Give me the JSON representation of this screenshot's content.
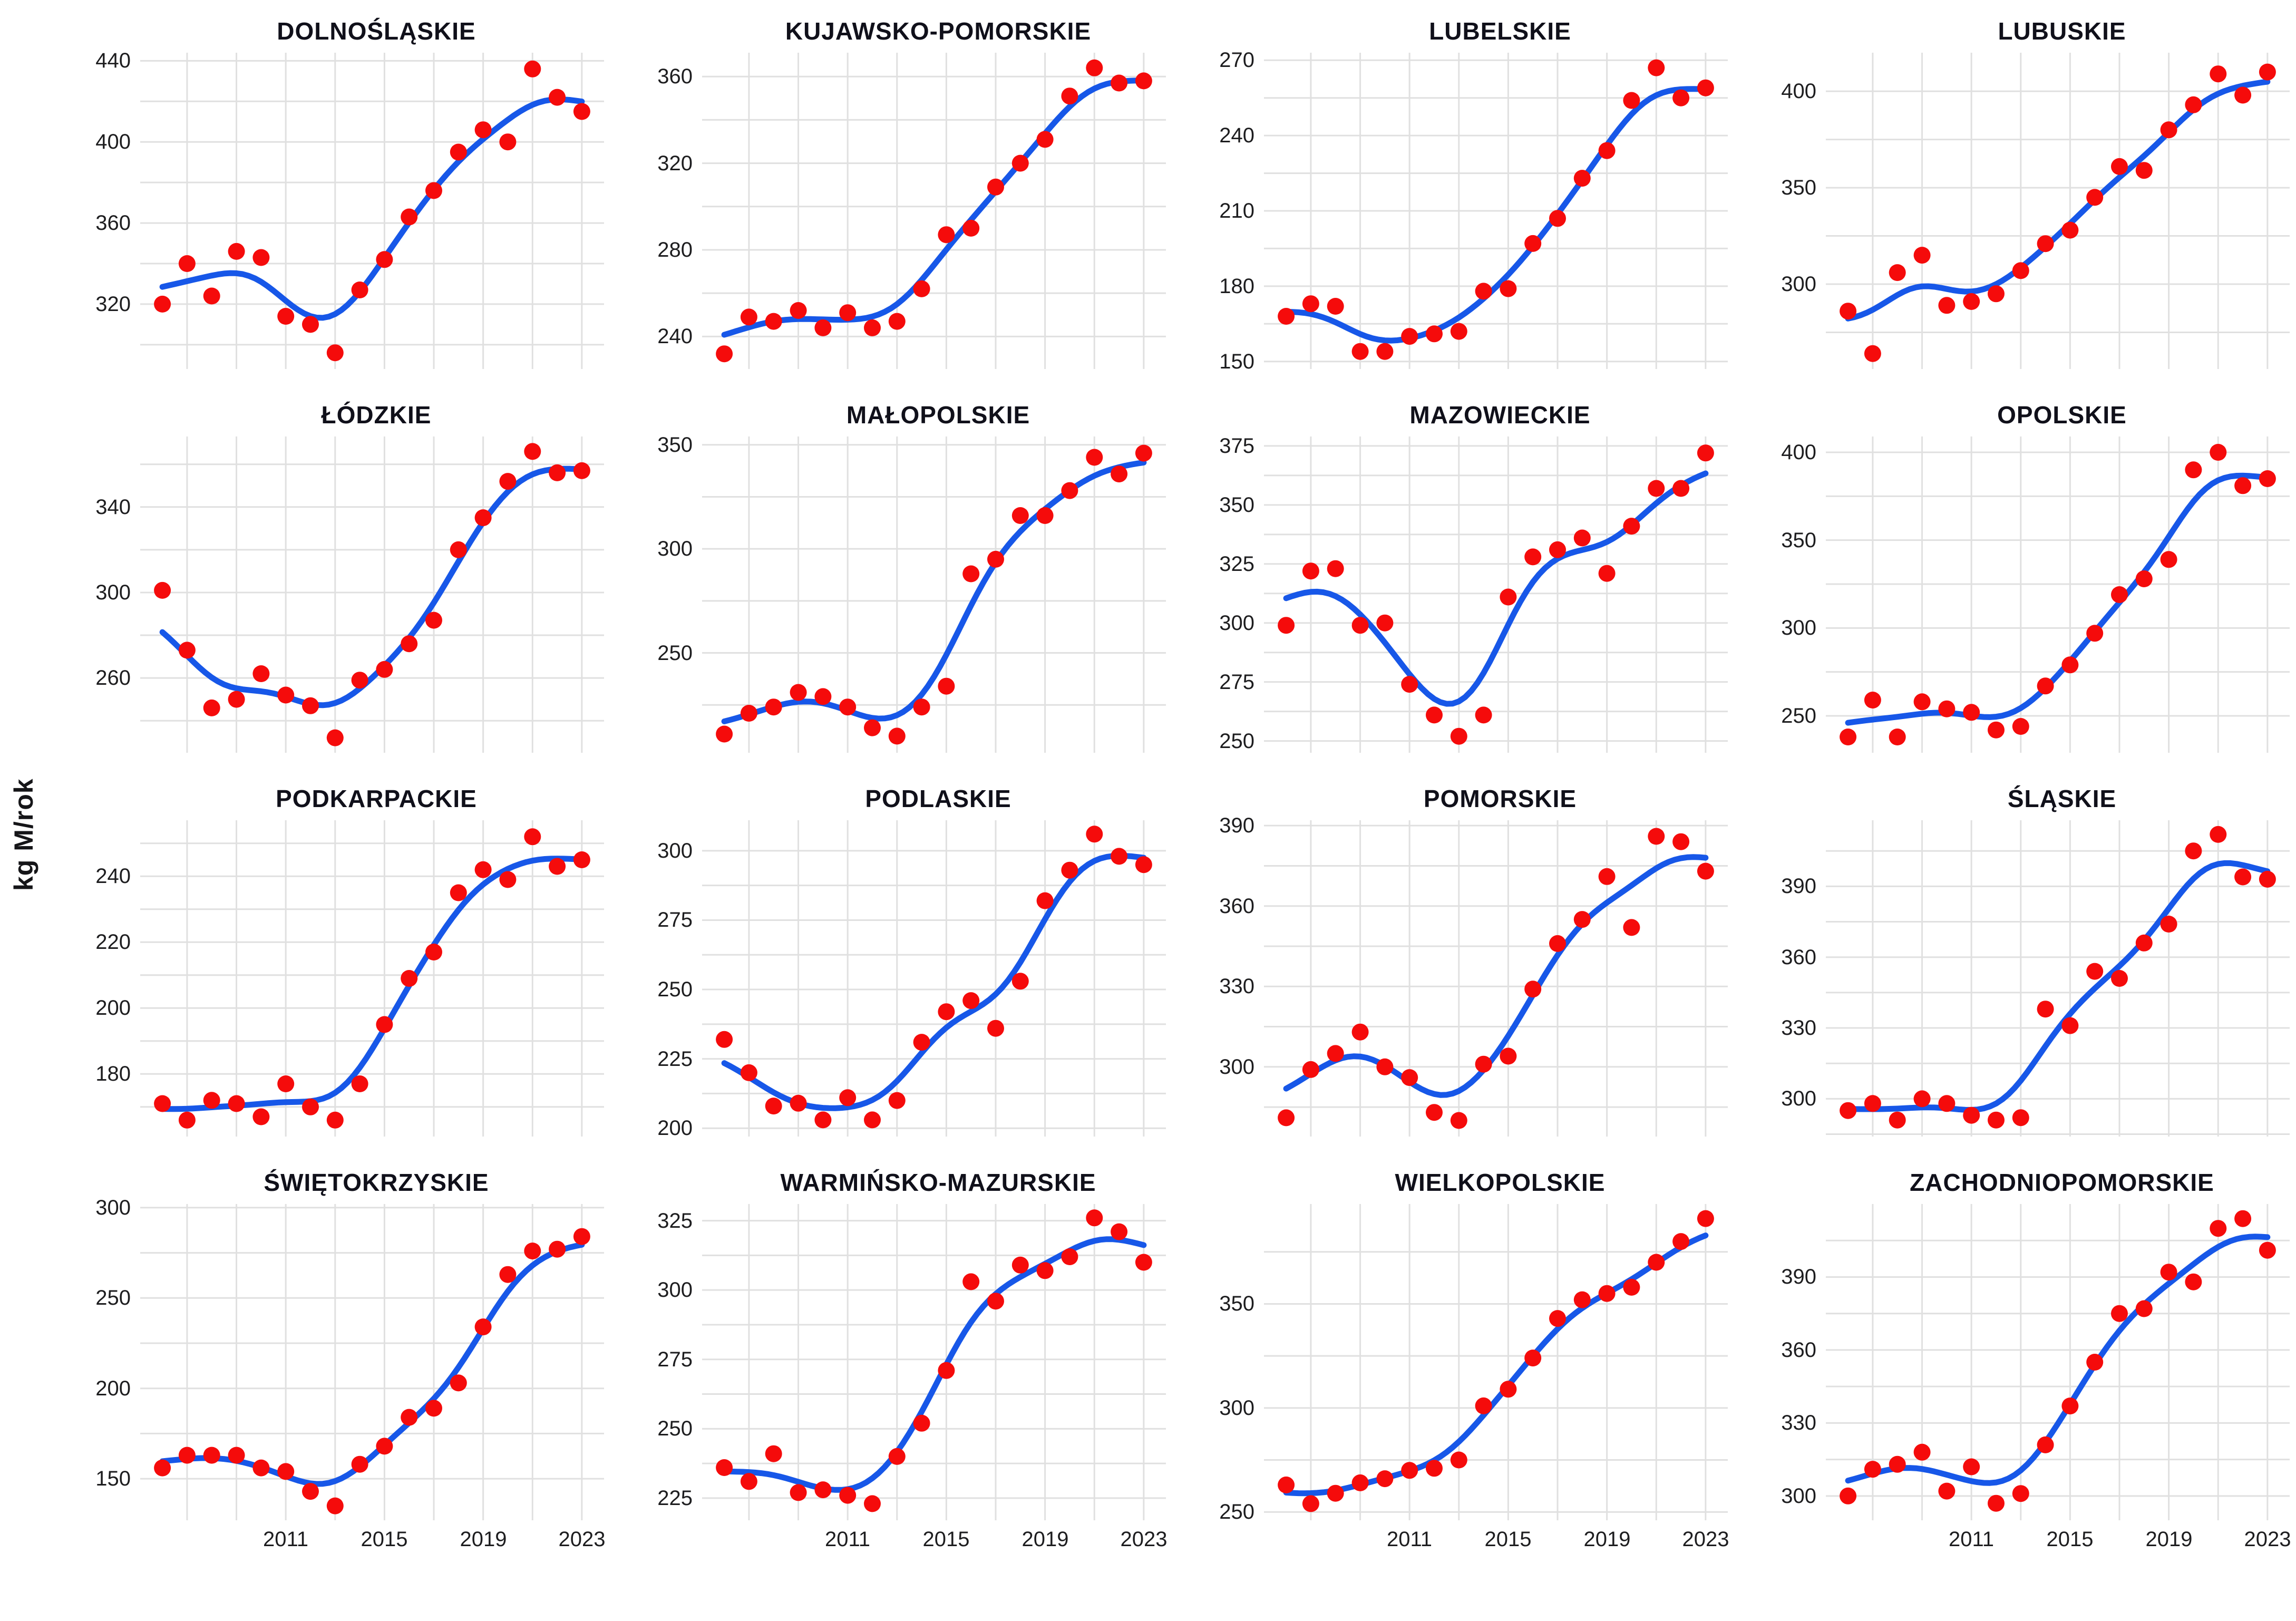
{
  "figure": {
    "ylab": "kg M/rok",
    "x_tick_labels": [
      "2011",
      "2015",
      "2019",
      "2023"
    ],
    "colors": {
      "point": "#f50b0b",
      "line": "#1757e8",
      "grid": "#e0e0e0",
      "text": "#1d1d1f",
      "title": "#10101a",
      "background": "#ffffff"
    }
  },
  "chart_data": {
    "type": "scatter",
    "title": "",
    "xlabel": "",
    "ylabel": "kg M/rok",
    "x": [
      2006,
      2007,
      2008,
      2009,
      2010,
      2011,
      2012,
      2013,
      2014,
      2015,
      2016,
      2017,
      2018,
      2019,
      2020,
      2021,
      2022,
      2023
    ],
    "x_ticks": [
      2011,
      2015,
      2019,
      2023
    ],
    "xlim": [
      2005.1,
      2023.9
    ],
    "grid": "on",
    "legend": "none",
    "smoother": {
      "type": "loess-approx",
      "bandwidth_years": 1.3,
      "color": "#1757e8"
    },
    "panels": [
      {
        "title": "DOLNOŚLĄSKIE",
        "y_ticks": [
          320,
          360,
          400,
          440
        ],
        "ylim": [
          288,
          444
        ],
        "values": [
          320,
          340,
          324,
          346,
          343,
          314,
          310,
          296,
          327,
          342,
          363,
          376,
          395,
          406,
          400,
          436,
          422,
          415
        ]
      },
      {
        "title": "KUJAWSKO-POMORSKIE",
        "y_ticks": [
          240,
          280,
          320,
          360
        ],
        "ylim": [
          225,
          371
        ],
        "values": [
          232,
          249,
          247,
          252,
          244,
          251,
          244,
          247,
          262,
          287,
          290,
          309,
          320,
          331,
          351,
          364,
          357,
          358
        ]
      },
      {
        "title": "LUBELSKIE",
        "y_ticks": [
          150,
          180,
          210,
          240,
          270
        ],
        "ylim": [
          147,
          273
        ],
        "values": [
          168,
          173,
          172,
          154,
          154,
          160,
          161,
          162,
          178,
          179,
          197,
          207,
          223,
          234,
          254,
          267,
          255,
          259
        ]
      },
      {
        "title": "LUBUSKIE",
        "y_ticks": [
          300,
          350,
          400
        ],
        "ylim": [
          256,
          420
        ],
        "values": [
          286,
          264,
          306,
          315,
          289,
          291,
          295,
          307,
          321,
          328,
          345,
          361,
          359,
          380,
          393,
          409,
          398,
          410
        ]
      },
      {
        "title": "ŁÓDZKIE",
        "y_ticks": [
          260,
          300,
          340
        ],
        "ylim": [
          225,
          373
        ],
        "values": [
          301,
          273,
          246,
          250,
          262,
          252,
          247,
          232,
          259,
          264,
          276,
          287,
          320,
          335,
          352,
          366,
          356,
          357
        ]
      },
      {
        "title": "MAŁOPOLSKIE",
        "y_ticks": [
          250,
          300,
          350
        ],
        "ylim": [
          202,
          354
        ],
        "values": [
          211,
          221,
          224,
          231,
          229,
          224,
          214,
          210,
          224,
          234,
          288,
          295,
          316,
          316,
          328,
          344,
          336,
          346
        ]
      },
      {
        "title": "MAZOWIECKIE",
        "y_ticks": [
          250,
          275,
          300,
          325,
          350,
          375
        ],
        "ylim": [
          245,
          379
        ],
        "values": [
          299,
          322,
          323,
          299,
          300,
          274,
          261,
          252,
          261,
          311,
          328,
          331,
          336,
          321,
          341,
          357,
          357,
          372
        ]
      },
      {
        "title": "OPOLSKIE",
        "y_ticks": [
          250,
          300,
          350,
          400
        ],
        "ylim": [
          229,
          409
        ],
        "values": [
          238,
          259,
          238,
          258,
          254,
          252,
          242,
          244,
          267,
          279,
          297,
          319,
          328,
          339,
          390,
          400,
          381,
          385
        ]
      },
      {
        "title": "PODKARPACKIE",
        "y_ticks": [
          180,
          200,
          220,
          240
        ],
        "ylim": [
          161,
          257
        ],
        "values": [
          171,
          166,
          172,
          171,
          167,
          177,
          170,
          166,
          177,
          195,
          209,
          217,
          235,
          242,
          239,
          252,
          243,
          245
        ]
      },
      {
        "title": "PODLASKIE",
        "y_ticks": [
          200,
          225,
          250,
          275,
          300
        ],
        "ylim": [
          197,
          311
        ],
        "values": [
          232,
          220,
          208,
          209,
          203,
          211,
          203,
          210,
          231,
          242,
          246,
          236,
          253,
          282,
          293,
          306,
          298,
          295
        ]
      },
      {
        "title": "POMORSKIE",
        "y_ticks": [
          300,
          330,
          360,
          390
        ],
        "ylim": [
          274,
          392
        ],
        "values": [
          281,
          299,
          305,
          313,
          300,
          296,
          283,
          280,
          301,
          304,
          329,
          346,
          355,
          371,
          352,
          386,
          384,
          373
        ]
      },
      {
        "title": "ŚLĄSKIE",
        "y_ticks": [
          300,
          330,
          360,
          390
        ],
        "ylim": [
          284,
          418
        ],
        "values": [
          295,
          298,
          291,
          300,
          298,
          293,
          291,
          292,
          338,
          331,
          354,
          351,
          366,
          374,
          405,
          412,
          394,
          393
        ]
      },
      {
        "title": "ŚWIĘTOKRZYSKIE",
        "y_ticks": [
          150,
          200,
          250,
          300
        ],
        "ylim": [
          127,
          302
        ],
        "values": [
          156,
          163,
          163,
          163,
          156,
          154,
          143,
          135,
          158,
          168,
          184,
          189,
          203,
          234,
          263,
          276,
          277,
          284
        ]
      },
      {
        "title": "WARMIŃSKO-MAZURSKIE",
        "y_ticks": [
          225,
          250,
          275,
          300,
          325
        ],
        "ylim": [
          217,
          331
        ],
        "values": [
          236,
          231,
          241,
          227,
          228,
          226,
          223,
          240,
          252,
          271,
          303,
          296,
          309,
          307,
          312,
          326,
          321,
          310
        ]
      },
      {
        "title": "WIELKOPOLSKIE",
        "y_ticks": [
          250,
          300,
          350
        ],
        "ylim": [
          246,
          398
        ],
        "values": [
          263,
          254,
          259,
          264,
          266,
          270,
          271,
          275,
          301,
          309,
          324,
          343,
          352,
          355,
          358,
          370,
          380,
          391
        ]
      },
      {
        "title": "ZACHODNIOPOMORSKIE",
        "y_ticks": [
          300,
          330,
          360,
          390
        ],
        "ylim": [
          290,
          420
        ],
        "values": [
          300,
          311,
          313,
          318,
          302,
          312,
          297,
          301,
          321,
          337,
          355,
          375,
          377,
          392,
          388,
          410,
          414,
          401
        ]
      }
    ]
  }
}
